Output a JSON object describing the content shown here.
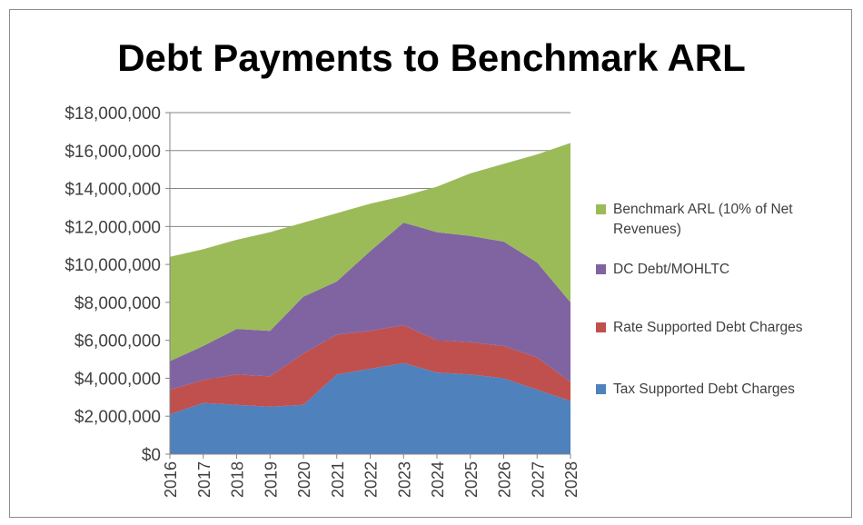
{
  "chart_data": {
    "type": "area",
    "stacked": true,
    "title": "Debt Payments to Benchmark ARL",
    "xlabel": "",
    "ylabel": "",
    "categories": [
      "2016",
      "2017",
      "2018",
      "2019",
      "2020",
      "2021",
      "2022",
      "2023",
      "2024",
      "2025",
      "2026",
      "2027",
      "2028"
    ],
    "ylim": [
      0,
      18000000
    ],
    "yticks": [
      0,
      2000000,
      4000000,
      6000000,
      8000000,
      10000000,
      12000000,
      14000000,
      16000000,
      18000000
    ],
    "ytick_labels": [
      "$0",
      "$2,000,000",
      "$4,000,000",
      "$6,000,000",
      "$8,000,000",
      "$10,000,000",
      "$12,000,000",
      "$14,000,000",
      "$16,000,000",
      "$18,000,000"
    ],
    "grid": true,
    "legend_position": "right",
    "series": [
      {
        "name": "Tax Supported Debt Charges",
        "color": "#4f81bd",
        "values": [
          2100000,
          2700000,
          2600000,
          2500000,
          2600000,
          4200000,
          4500000,
          4800000,
          4300000,
          4200000,
          4000000,
          3400000,
          2800000
        ]
      },
      {
        "name": "Rate Supported Debt Charges",
        "color": "#c0504d",
        "values": [
          1300000,
          1200000,
          1600000,
          1600000,
          2700000,
          2100000,
          2000000,
          2000000,
          1700000,
          1700000,
          1700000,
          1700000,
          1000000
        ]
      },
      {
        "name": "DC Debt/MOHLTC",
        "color": "#8064a2",
        "values": [
          1500000,
          1800000,
          2400000,
          2400000,
          3000000,
          2800000,
          4200000,
          5400000,
          5700000,
          5600000,
          5500000,
          5000000,
          4200000
        ]
      },
      {
        "name": "Benchmark ARL (10% of Net Revenues)",
        "color": "#9bbb59",
        "values": [
          5500000,
          5100000,
          4700000,
          5200000,
          3900000,
          3600000,
          2500000,
          1400000,
          2400000,
          3300000,
          4100000,
          5700000,
          8400000
        ]
      }
    ],
    "legend": [
      {
        "label": "Benchmark ARL (10% of Net Revenues)",
        "color": "#9bbb59"
      },
      {
        "label": "DC Debt/MOHLTC",
        "color": "#8064a2"
      },
      {
        "label": "Rate Supported Debt Charges",
        "color": "#c0504d"
      },
      {
        "label": "Tax Supported Debt Charges",
        "color": "#4f81bd"
      }
    ]
  }
}
